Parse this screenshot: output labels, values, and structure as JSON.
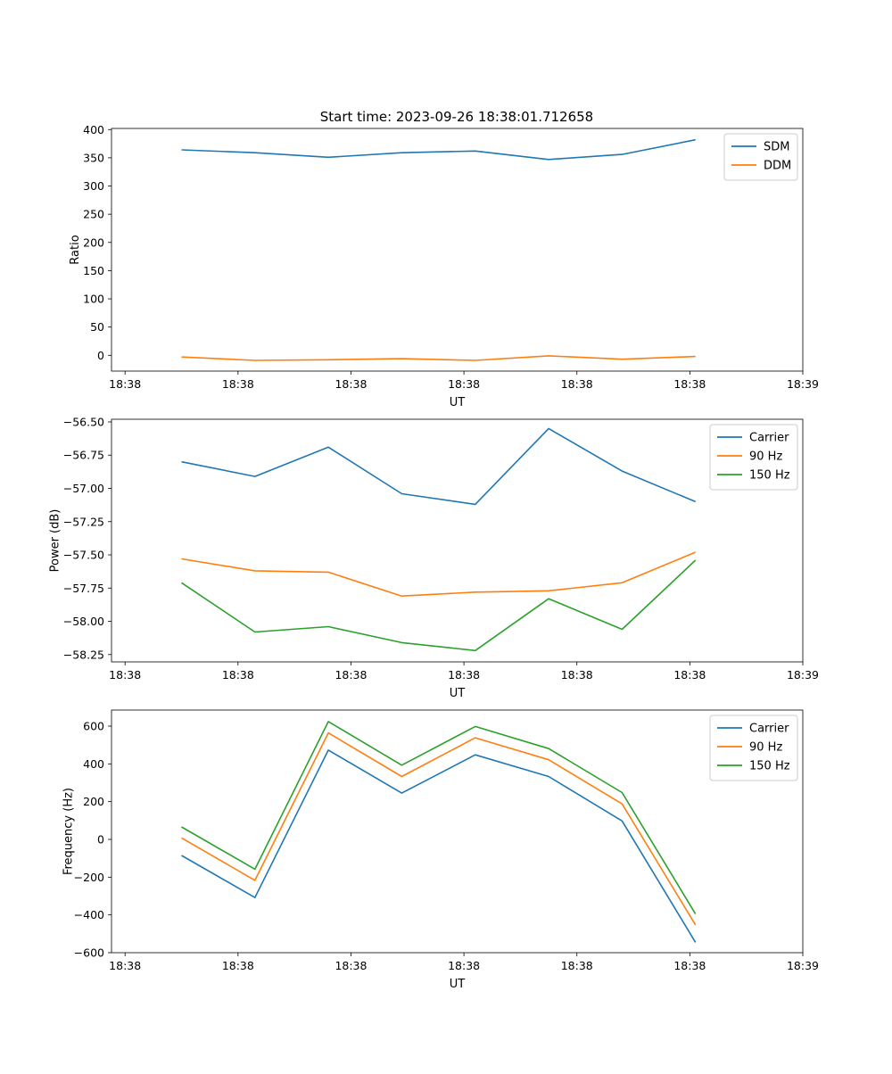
{
  "title": "Start time: 2023-09-26 18:38:01.712658",
  "chart_data": [
    {
      "type": "line",
      "xlabel": "UT",
      "ylabel": "Ratio",
      "x_ticks": [
        "18:38",
        "18:38",
        "18:38",
        "18:38",
        "18:38",
        "18:38",
        "18:39"
      ],
      "x_tick_pos": [
        0,
        1,
        2,
        3,
        4,
        5,
        6
      ],
      "x_points": [
        0.5,
        1.15,
        1.8,
        2.45,
        3.1,
        3.75,
        4.4,
        5.05
      ],
      "xlim": [
        -0.12,
        6.0
      ],
      "ylim": [
        -28,
        402
      ],
      "y_ticks": [
        0,
        50,
        100,
        150,
        200,
        250,
        300,
        350,
        400
      ],
      "legend_position": "top-right",
      "series": [
        {
          "name": "SDM",
          "color": "#1f77b4",
          "values": [
            364,
            359,
            351,
            359,
            362,
            347,
            356,
            382
          ]
        },
        {
          "name": "DDM",
          "color": "#ff7f0e",
          "values": [
            -3,
            -9,
            -8,
            -6,
            -9,
            -1,
            -7,
            -2
          ]
        }
      ]
    },
    {
      "type": "line",
      "xlabel": "UT",
      "ylabel": "Power (dB)",
      "x_ticks": [
        "18:38",
        "18:38",
        "18:38",
        "18:38",
        "18:38",
        "18:38",
        "18:39"
      ],
      "x_tick_pos": [
        0,
        1,
        2,
        3,
        4,
        5,
        6
      ],
      "x_points": [
        0.5,
        1.15,
        1.8,
        2.45,
        3.1,
        3.75,
        4.4,
        5.05
      ],
      "xlim": [
        -0.12,
        6.0
      ],
      "ylim": [
        -58.305,
        -56.48
      ],
      "y_ticks": [
        -58.25,
        -58.0,
        -57.75,
        -57.5,
        -57.25,
        -57.0,
        -56.75,
        -56.5
      ],
      "y_tick_labels": [
        "−58.25",
        "−58.00",
        "−57.75",
        "−57.50",
        "−57.25",
        "−57.00",
        "−56.75",
        "−56.50"
      ],
      "legend_position": "top-right",
      "series": [
        {
          "name": "Carrier",
          "color": "#1f77b4",
          "values": [
            -56.8,
            -56.91,
            -56.69,
            -57.04,
            -57.12,
            -56.55,
            -56.87,
            -57.1
          ]
        },
        {
          "name": "90 Hz",
          "color": "#ff7f0e",
          "values": [
            -57.53,
            -57.62,
            -57.63,
            -57.81,
            -57.78,
            -57.77,
            -57.71,
            -57.48
          ]
        },
        {
          "name": "150 Hz",
          "color": "#2ca02c",
          "values": [
            -57.71,
            -58.08,
            -58.04,
            -58.16,
            -58.22,
            -57.83,
            -58.06,
            -57.54
          ]
        }
      ]
    },
    {
      "type": "line",
      "xlabel": "UT",
      "ylabel": "Frequency (Hz)",
      "x_ticks": [
        "18:38",
        "18:38",
        "18:38",
        "18:38",
        "18:38",
        "18:38",
        "18:39"
      ],
      "x_tick_pos": [
        0,
        1,
        2,
        3,
        4,
        5,
        6
      ],
      "x_points": [
        0.5,
        1.15,
        1.8,
        2.45,
        3.1,
        3.75,
        4.4,
        5.05
      ],
      "xlim": [
        -0.12,
        6.0
      ],
      "ylim": [
        -600,
        685
      ],
      "y_ticks": [
        -600,
        -400,
        -200,
        0,
        200,
        400,
        600
      ],
      "y_tick_labels": [
        "−600",
        "−400",
        "−200",
        "0",
        "200",
        "400",
        "600"
      ],
      "legend_position": "top-right",
      "series": [
        {
          "name": "Carrier",
          "color": "#1f77b4",
          "values": [
            -85,
            -308,
            473,
            245,
            448,
            333,
            98,
            -545
          ]
        },
        {
          "name": "90 Hz",
          "color": "#ff7f0e",
          "values": [
            8,
            -217,
            564,
            333,
            538,
            422,
            188,
            -453
          ]
        },
        {
          "name": "150 Hz",
          "color": "#2ca02c",
          "values": [
            66,
            -158,
            624,
            393,
            598,
            481,
            248,
            -395
          ]
        }
      ]
    }
  ]
}
